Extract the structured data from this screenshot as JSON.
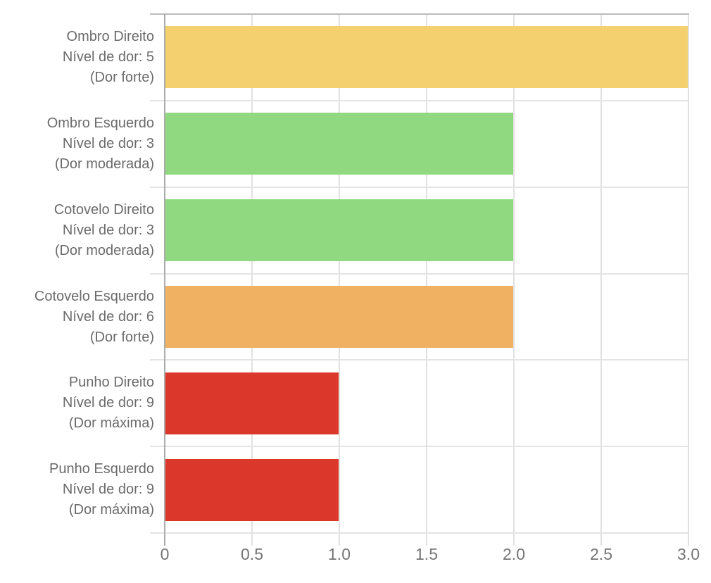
{
  "chart_data": {
    "type": "bar",
    "orientation": "horizontal",
    "title": "",
    "xlabel": "",
    "ylabel": "",
    "xlim": [
      0,
      3
    ],
    "grid": true,
    "x_ticks": [
      {
        "value": 0,
        "label": "0"
      },
      {
        "value": 0.5,
        "label": "0.5"
      },
      {
        "value": 1,
        "label": "1.0"
      },
      {
        "value": 1.5,
        "label": "1.5"
      },
      {
        "value": 2,
        "label": "2.0"
      },
      {
        "value": 2.5,
        "label": "2.5"
      },
      {
        "value": 3,
        "label": "3.0"
      }
    ],
    "bars": [
      {
        "label_lines": [
          "Ombro Direito",
          "Nível de dor: 5",
          "(Dor forte)"
        ],
        "value": 3,
        "color": "#F5D06E"
      },
      {
        "label_lines": [
          "Ombro Esquerdo",
          "Nível de dor: 3",
          "(Dor moderada)"
        ],
        "value": 2,
        "color": "#90D980"
      },
      {
        "label_lines": [
          "Cotovelo Direito",
          "Nível de dor: 3",
          "(Dor moderada)"
        ],
        "value": 2,
        "color": "#90D980"
      },
      {
        "label_lines": [
          "Cotovelo Esquerdo",
          "Nível de dor: 6",
          "(Dor forte)"
        ],
        "value": 2,
        "color": "#F0B162"
      },
      {
        "label_lines": [
          "Punho Direito",
          "Nível de dor: 9",
          "(Dor máxima)"
        ],
        "value": 1,
        "color": "#DB382B"
      },
      {
        "label_lines": [
          "Punho Esquerdo",
          "Nível de dor: 9",
          "(Dor máxima)"
        ],
        "value": 1,
        "color": "#DB382B"
      }
    ]
  },
  "colors": {
    "background": "#FFFFFF",
    "axis_line": "#A9ABAD",
    "top_border": "#BBBBBB",
    "gridline": "#E1E1E1",
    "row_boundary": "#E4E4E4",
    "label_text": "#6B6B6B",
    "tick_text": "#757575"
  }
}
